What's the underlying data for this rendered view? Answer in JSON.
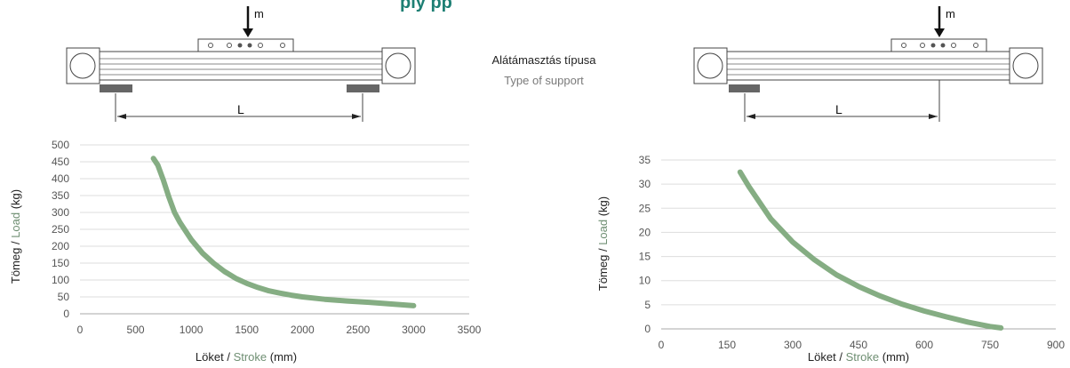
{
  "header": {
    "partial_title": "ply       pp"
  },
  "center": {
    "label_hu": "Alátámasztás típusa",
    "label_en": "Type of support"
  },
  "diagrams": [
    {
      "mass_label": "m",
      "length_label": "L"
    },
    {
      "mass_label": "m",
      "length_label": "L"
    }
  ],
  "colors": {
    "curve": "#85ad83",
    "english": "#7a9a7a",
    "support_pad": "#666666",
    "grid": "#dddddd",
    "title_teal": "#1e7f74"
  },
  "chart_data": [
    {
      "type": "line",
      "xlabel": {
        "hu": "Löket",
        "sep": " / ",
        "en": "Stroke",
        "unit": " (mm)"
      },
      "ylabel": {
        "hu": "Tömeg",
        "sep": " / ",
        "en": "Load",
        "unit": " (kg)"
      },
      "xlim": [
        0,
        3500
      ],
      "ylim": [
        0,
        500
      ],
      "xticks": [
        0,
        500,
        1000,
        1500,
        2000,
        2500,
        3000,
        3500
      ],
      "yticks": [
        0,
        50,
        100,
        150,
        200,
        250,
        300,
        350,
        400,
        450,
        500
      ],
      "grid": true,
      "x": [
        660,
        700,
        750,
        800,
        850,
        900,
        1000,
        1100,
        1200,
        1300,
        1400,
        1500,
        1600,
        1700,
        1800,
        1900,
        2000,
        2200,
        2400,
        2600,
        2800,
        3000
      ],
      "y": [
        460,
        440,
        395,
        345,
        300,
        270,
        220,
        180,
        150,
        125,
        105,
        90,
        78,
        68,
        61,
        55,
        50,
        43,
        38,
        34,
        29,
        24
      ]
    },
    {
      "type": "line",
      "xlabel": {
        "hu": "Löket",
        "sep": " / ",
        "en": "Stroke",
        "unit": " (mm)"
      },
      "ylabel": {
        "hu": "Tömeg",
        "sep": " / ",
        "en": "Load",
        "unit": " (kg)"
      },
      "xlim": [
        0,
        900
      ],
      "ylim": [
        0,
        35
      ],
      "xticks": [
        0,
        150,
        300,
        450,
        600,
        750,
        900
      ],
      "yticks": [
        0,
        5,
        10,
        15,
        20,
        25,
        30,
        35
      ],
      "grid": true,
      "x": [
        180,
        200,
        250,
        300,
        350,
        400,
        450,
        500,
        550,
        600,
        650,
        700,
        750,
        775
      ],
      "y": [
        32.5,
        29.5,
        22.8,
        18.0,
        14.3,
        11.2,
        8.8,
        6.8,
        5.1,
        3.7,
        2.5,
        1.4,
        0.5,
        0.2
      ]
    }
  ]
}
